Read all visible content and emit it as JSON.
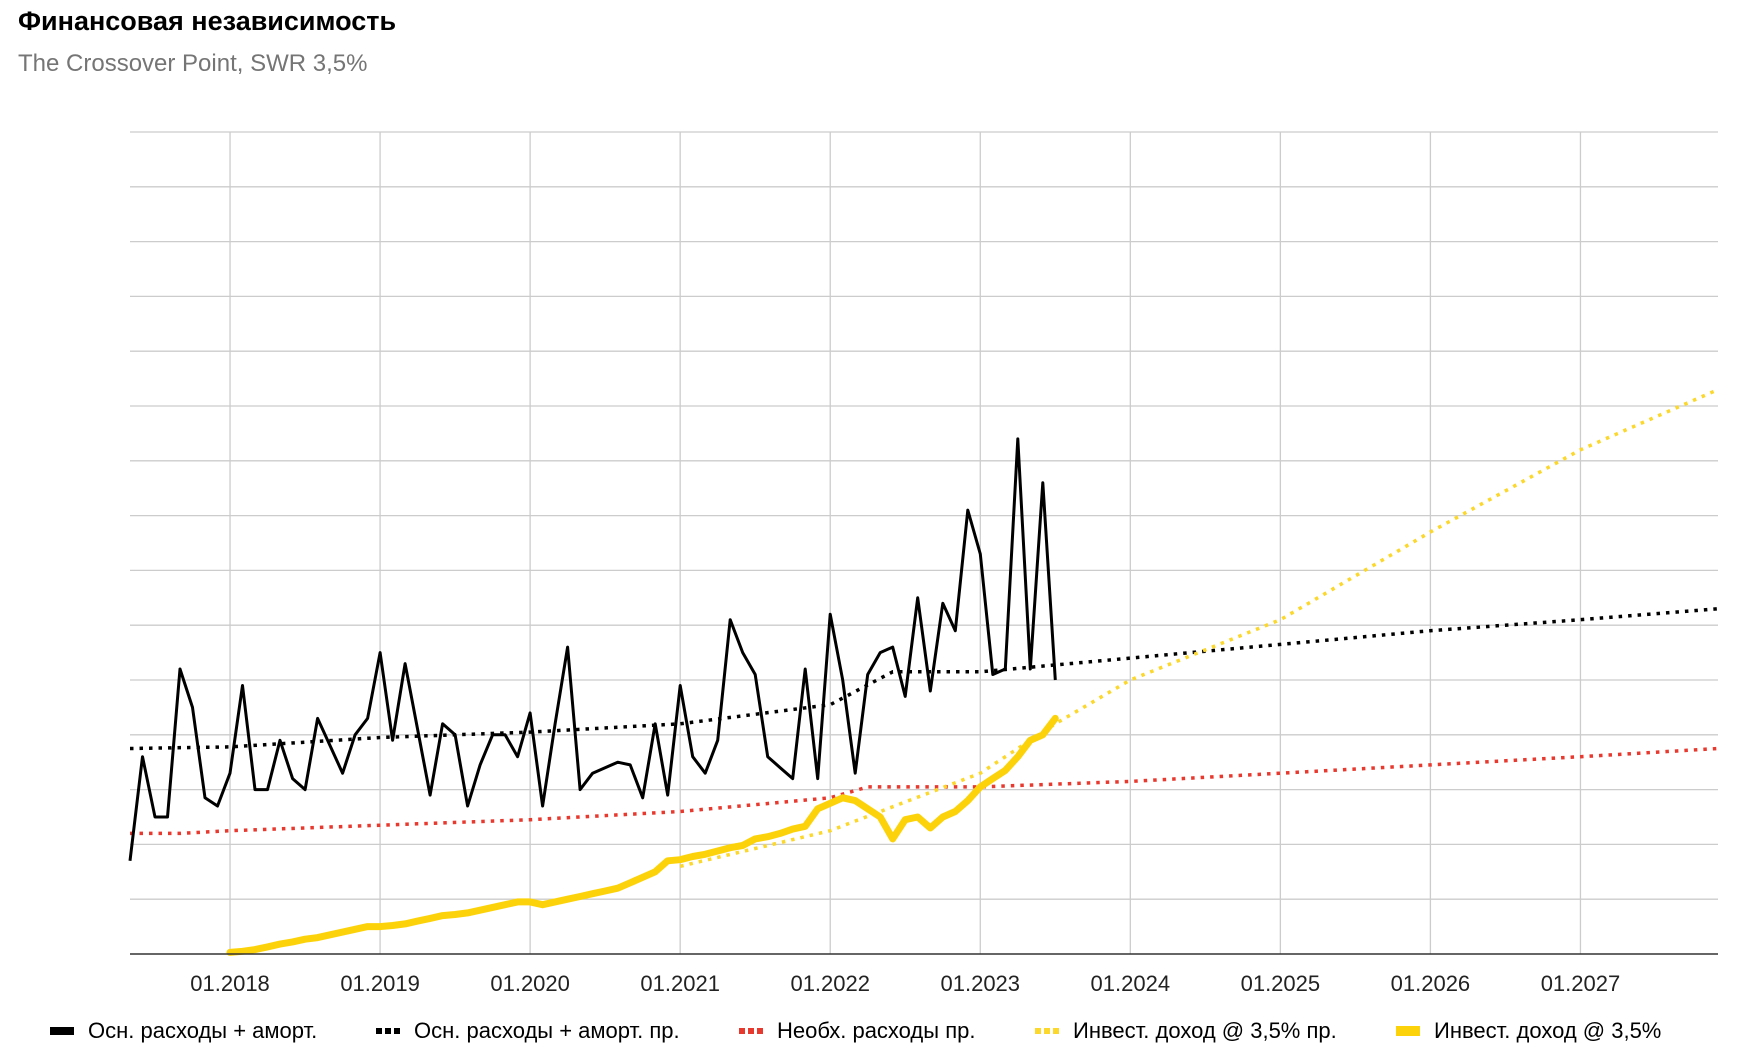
{
  "title": "Финансовая независимость",
  "subtitle": "The Crossover Point, SWR 3,5%",
  "colors": {
    "expenses": "#000000",
    "expenses_trend": "#000000",
    "necessary_trend": "#e8392f",
    "income_trend": "#fcd72c",
    "income": "#fcd30a",
    "grid": "#cccccc",
    "axis": "#333333"
  },
  "chart_data": {
    "type": "line",
    "title": "Финансовая независимость",
    "subtitle": "The Crossover Point, SWR 3,5%",
    "xlabel": "",
    "ylabel": "",
    "x_axis_type": "date",
    "xlim": [
      "2017-05",
      "2027-12"
    ],
    "ylim": [
      0,
      15
    ],
    "y_gridlines": 15,
    "y_tick_labels_shown": false,
    "grid": true,
    "legend_position": "bottom",
    "x_ticks": [
      "01.2018",
      "01.2019",
      "01.2020",
      "01.2021",
      "01.2022",
      "01.2023",
      "01.2024",
      "01.2025",
      "01.2026",
      "01.2027"
    ],
    "series": [
      {
        "name": "Осн. расходы + аморт.",
        "style": "solid-thin",
        "color": "#000000",
        "x": [
          "2017-05",
          "2017-06",
          "2017-07",
          "2017-08",
          "2017-09",
          "2017-10",
          "2017-11",
          "2017-12",
          "2018-01",
          "2018-02",
          "2018-03",
          "2018-04",
          "2018-05",
          "2018-06",
          "2018-07",
          "2018-08",
          "2018-09",
          "2018-10",
          "2018-11",
          "2018-12",
          "2019-01",
          "2019-02",
          "2019-03",
          "2019-04",
          "2019-05",
          "2019-06",
          "2019-07",
          "2019-08",
          "2019-09",
          "2019-10",
          "2019-11",
          "2019-12",
          "2020-01",
          "2020-02",
          "2020-03",
          "2020-04",
          "2020-05",
          "2020-06",
          "2020-07",
          "2020-08",
          "2020-09",
          "2020-10",
          "2020-11",
          "2020-12",
          "2021-01",
          "2021-02",
          "2021-03",
          "2021-04",
          "2021-05",
          "2021-06",
          "2021-07",
          "2021-08",
          "2021-09",
          "2021-10",
          "2021-11",
          "2021-12",
          "2022-01",
          "2022-02",
          "2022-03",
          "2022-04",
          "2022-05",
          "2022-06",
          "2022-07",
          "2022-08",
          "2022-09",
          "2022-10",
          "2022-11",
          "2022-12",
          "2023-01",
          "2023-02",
          "2023-03",
          "2023-04",
          "2023-05",
          "2023-06",
          "2023-07"
        ],
        "values": [
          1.7,
          3.6,
          2.5,
          2.5,
          5.2,
          4.5,
          2.85,
          2.7,
          3.3,
          4.9,
          3.0,
          3.0,
          3.9,
          3.2,
          3.0,
          4.3,
          3.8,
          3.3,
          4.0,
          4.3,
          5.5,
          3.9,
          5.3,
          4.1,
          2.9,
          4.2,
          4.0,
          2.7,
          3.45,
          4.0,
          4.0,
          3.6,
          4.4,
          2.7,
          4.2,
          5.6,
          3.0,
          3.3,
          3.4,
          3.5,
          3.45,
          2.85,
          4.2,
          2.9,
          4.9,
          3.6,
          3.3,
          3.9,
          6.1,
          5.5,
          5.1,
          3.6,
          3.4,
          3.2,
          5.2,
          3.2,
          6.2,
          5.0,
          3.3,
          5.1,
          5.5,
          5.6,
          4.7,
          6.5,
          4.8,
          6.4,
          5.9,
          8.1,
          7.3,
          5.1,
          5.2,
          9.4,
          5.2,
          8.6,
          5.0
        ]
      },
      {
        "name": "Осн. расходы + аморт. пр.",
        "style": "dotted",
        "color": "#000000",
        "x": [
          "2017-05",
          "2018-01",
          "2019-01",
          "2020-01",
          "2021-01",
          "2022-01",
          "2022-06",
          "2023-01",
          "2024-01",
          "2025-01",
          "2026-01",
          "2027-01",
          "2027-12"
        ],
        "values": [
          3.75,
          3.78,
          3.95,
          4.05,
          4.2,
          4.55,
          5.15,
          5.15,
          5.4,
          5.65,
          5.9,
          6.1,
          6.3
        ]
      },
      {
        "name": "Необх. расходы пр.",
        "style": "dotted",
        "color": "#e8392f",
        "x": [
          "2017-05",
          "2017-09",
          "2018-01",
          "2019-01",
          "2020-01",
          "2021-01",
          "2022-01",
          "2022-04",
          "2023-01",
          "2024-01",
          "2025-01",
          "2026-01",
          "2027-01",
          "2027-12"
        ],
        "values": [
          2.2,
          2.2,
          2.25,
          2.35,
          2.45,
          2.6,
          2.85,
          3.05,
          3.05,
          3.15,
          3.3,
          3.45,
          3.6,
          3.75
        ]
      },
      {
        "name": "Инвест. доход @ 3,5% пр.",
        "style": "dotted",
        "color": "#fcd72c",
        "x": [
          "2021-01",
          "2022-01",
          "2023-01",
          "2023-07",
          "2024-01",
          "2025-01",
          "2026-01",
          "2027-01",
          "2027-12"
        ],
        "values": [
          1.6,
          2.25,
          3.3,
          4.2,
          5.0,
          6.1,
          7.7,
          9.2,
          10.3
        ]
      },
      {
        "name": "Инвест. доход @ 3,5%",
        "style": "solid-thick",
        "color": "#fcd30a",
        "x": [
          "2018-01",
          "2018-02",
          "2018-03",
          "2018-04",
          "2018-05",
          "2018-06",
          "2018-07",
          "2018-08",
          "2018-09",
          "2018-10",
          "2018-11",
          "2018-12",
          "2019-01",
          "2019-02",
          "2019-03",
          "2019-04",
          "2019-05",
          "2019-06",
          "2019-07",
          "2019-08",
          "2019-09",
          "2019-10",
          "2019-11",
          "2019-12",
          "2020-01",
          "2020-02",
          "2020-03",
          "2020-04",
          "2020-05",
          "2020-06",
          "2020-07",
          "2020-08",
          "2020-09",
          "2020-10",
          "2020-11",
          "2020-12",
          "2021-01",
          "2021-02",
          "2021-03",
          "2021-04",
          "2021-05",
          "2021-06",
          "2021-07",
          "2021-08",
          "2021-09",
          "2021-10",
          "2021-11",
          "2021-12",
          "2022-01",
          "2022-02",
          "2022-03",
          "2022-04",
          "2022-05",
          "2022-06",
          "2022-07",
          "2022-08",
          "2022-09",
          "2022-10",
          "2022-11",
          "2022-12",
          "2023-01",
          "2023-02",
          "2023-03",
          "2023-04",
          "2023-05",
          "2023-06",
          "2023-07"
        ],
        "values": [
          0.03,
          0.05,
          0.08,
          0.13,
          0.18,
          0.22,
          0.27,
          0.3,
          0.35,
          0.4,
          0.45,
          0.5,
          0.5,
          0.52,
          0.55,
          0.6,
          0.65,
          0.7,
          0.72,
          0.75,
          0.8,
          0.85,
          0.9,
          0.95,
          0.95,
          0.9,
          0.95,
          1.0,
          1.05,
          1.1,
          1.15,
          1.2,
          1.3,
          1.4,
          1.5,
          1.7,
          1.72,
          1.78,
          1.82,
          1.88,
          1.94,
          1.98,
          2.1,
          2.14,
          2.2,
          2.28,
          2.33,
          2.65,
          2.75,
          2.85,
          2.8,
          2.65,
          2.5,
          2.1,
          2.45,
          2.5,
          2.3,
          2.5,
          2.6,
          2.8,
          3.05,
          3.2,
          3.35,
          3.6,
          3.9,
          4.0,
          4.3
        ]
      }
    ]
  }
}
